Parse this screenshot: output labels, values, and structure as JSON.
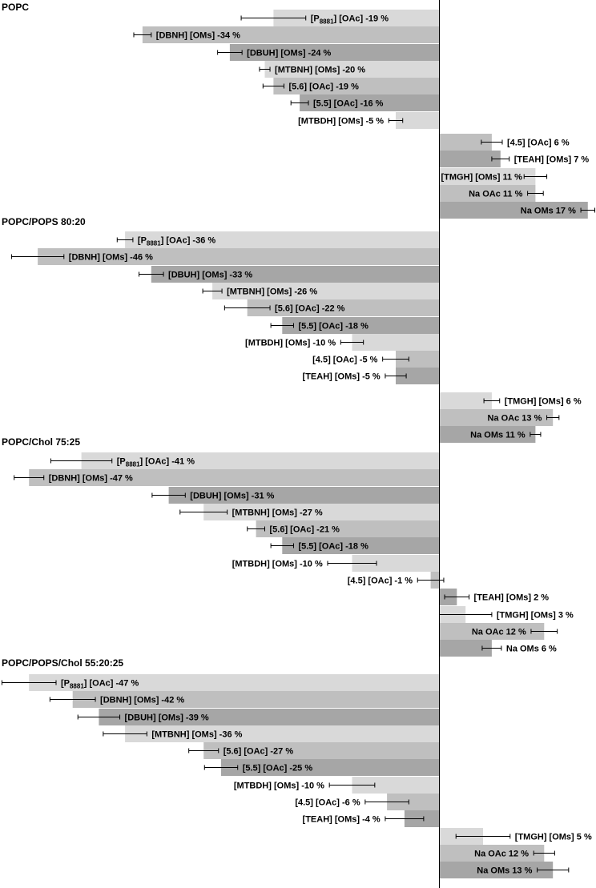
{
  "chart_data": {
    "type": "bar",
    "orientation": "horizontal",
    "unit": "%",
    "xlim": [
      -52,
      18
    ],
    "colors": {
      "light": "#d9d9d9",
      "mid": "#bfbfbf",
      "dark": "#a6a6a6"
    },
    "panels": [
      {
        "title": "POPC",
        "bars": [
          {
            "label": "[P8881] [OAc]",
            "value": -19,
            "text": "-19 %",
            "err": 3.7,
            "shade": "light"
          },
          {
            "label": "[DBNH] [OMs]",
            "value": -34,
            "text": "-34 %",
            "err": 1.0,
            "shade": "mid"
          },
          {
            "label": "[DBUH] [OMs]",
            "value": -24,
            "text": "-24 %",
            "err": 1.4,
            "shade": "dark"
          },
          {
            "label": "[MTBNH] [OMs]",
            "value": -20,
            "text": "-20 %",
            "err": 0.6,
            "shade": "light"
          },
          {
            "label": "[5.6] [OAc]",
            "value": -19,
            "text": "-19 %",
            "err": 1.2,
            "shade": "mid"
          },
          {
            "label": "[5.5] [OAc]",
            "value": -16,
            "text": "-16 %",
            "err": 1.0,
            "shade": "dark"
          },
          {
            "label": "[MTBDH] [OMs]",
            "value": -5,
            "text": "-5 %",
            "err": 0.8,
            "shade": "light"
          },
          {
            "label": "[4.5] [OAc]",
            "value": 6,
            "text": "6 %",
            "err": 1.2,
            "shade": "mid"
          },
          {
            "label": "[TEAH] [OMs]",
            "value": 7,
            "text": "7 %",
            "err": 1.0,
            "shade": "dark"
          },
          {
            "label": "[TMGH] [OMs]",
            "value": 11,
            "text": "11 %",
            "err": 1.3,
            "shade": "light"
          },
          {
            "label": "Na OAc",
            "value": 11,
            "text": "11 %",
            "err": 0.9,
            "shade": "mid"
          },
          {
            "label": "Na OMs",
            "value": 17,
            "text": "17 %",
            "err": 0.8,
            "shade": "dark"
          }
        ]
      },
      {
        "title": "POPC/POPS 80:20",
        "bars": [
          {
            "label": "[P8881] [OAc]",
            "value": -36,
            "text": "-36 %",
            "err": 0.9,
            "shade": "light"
          },
          {
            "label": "[DBNH] [OMs]",
            "value": -46,
            "text": "-46 %",
            "err": 3.0,
            "shade": "mid"
          },
          {
            "label": "[DBUH] [OMs]",
            "value": -33,
            "text": "-33 %",
            "err": 1.4,
            "shade": "dark"
          },
          {
            "label": "[MTBNH] [OMs]",
            "value": -26,
            "text": "-26 %",
            "err": 1.1,
            "shade": "light"
          },
          {
            "label": "[5.6] [OAc]",
            "value": -22,
            "text": "-22 %",
            "err": 2.6,
            "shade": "mid"
          },
          {
            "label": "[5.5] [OAc]",
            "value": -18,
            "text": "-18 %",
            "err": 1.3,
            "shade": "dark"
          },
          {
            "label": "[MTBDH] [OMs]",
            "value": -10,
            "text": "-10 %",
            "err": 1.3,
            "shade": "light"
          },
          {
            "label": "[4.5] [OAc]",
            "value": -5,
            "text": "-5 %",
            "err": 1.5,
            "shade": "mid"
          },
          {
            "label": "[TEAH] [OMs]",
            "value": -5,
            "text": "-5 %",
            "err": 1.2,
            "shade": "dark"
          },
          {
            "label": "[TMGH] [OMs]",
            "value": 6,
            "text": "6 %",
            "err": 0.9,
            "shade": "light"
          },
          {
            "label": "Na OAc",
            "value": 13,
            "text": "13 %",
            "err": 0.7,
            "shade": "mid"
          },
          {
            "label": "Na OMs",
            "value": 11,
            "text": "11 %",
            "err": 0.6,
            "shade": "dark"
          }
        ]
      },
      {
        "title": "POPC/Chol 75:25",
        "bars": [
          {
            "label": "[P8881] [OAc]",
            "value": -41,
            "text": "-41 %",
            "err": 3.5,
            "shade": "light"
          },
          {
            "label": "[DBNH] [OMs]",
            "value": -47,
            "text": "-47 %",
            "err": 1.7,
            "shade": "mid"
          },
          {
            "label": "[DBUH] [OMs]",
            "value": -31,
            "text": "-31 %",
            "err": 1.9,
            "shade": "dark"
          },
          {
            "label": "[MTBNH] [OMs]",
            "value": -27,
            "text": "-27 %",
            "err": 2.7,
            "shade": "light"
          },
          {
            "label": "[5.6] [OAc]",
            "value": -21,
            "text": "-21 %",
            "err": 1.0,
            "shade": "mid"
          },
          {
            "label": "[5.5] [OAc]",
            "value": -18,
            "text": "-18 %",
            "err": 1.3,
            "shade": "dark"
          },
          {
            "label": "[MTBDH] [OMs]",
            "value": -10,
            "text": "-10 %",
            "err": 2.8,
            "shade": "light"
          },
          {
            "label": "[4.5] [OAc]",
            "value": -1,
            "text": "-1 %",
            "err": 1.5,
            "shade": "mid"
          },
          {
            "label": "[TEAH] [OMs]",
            "value": 2,
            "text": "2 %",
            "err": 1.4,
            "shade": "dark"
          },
          {
            "label": "[TMGH] [OMs]",
            "value": 3,
            "text": "3 %",
            "err": 3.0,
            "shade": "light"
          },
          {
            "label": "Na OAc",
            "value": 12,
            "text": "12 %",
            "err": 1.5,
            "shade": "mid"
          },
          {
            "label": "Na OMs",
            "value": 6,
            "text": "6 %",
            "err": 1.1,
            "shade": "dark"
          }
        ]
      },
      {
        "title": "POPC/POPS/Chol 55:20:25",
        "bars": [
          {
            "label": "[P8881] [OAc]",
            "value": -47,
            "text": "-47 %",
            "err": 3.1,
            "shade": "light"
          },
          {
            "label": "[DBNH] [OMs]",
            "value": -42,
            "text": "-42 %",
            "err": 2.6,
            "shade": "mid"
          },
          {
            "label": "[DBUH] [OMs]",
            "value": -39,
            "text": "-39 %",
            "err": 2.4,
            "shade": "dark"
          },
          {
            "label": "[MTBNH] [OMs]",
            "value": -36,
            "text": "-36 %",
            "err": 2.5,
            "shade": "light"
          },
          {
            "label": "[5.6] [OAc]",
            "value": -27,
            "text": "-27 %",
            "err": 1.7,
            "shade": "mid"
          },
          {
            "label": "[5.5] [OAc]",
            "value": -25,
            "text": "-25 %",
            "err": 1.9,
            "shade": "dark"
          },
          {
            "label": "[MTBDH] [OMs]",
            "value": -10,
            "text": "-10 %",
            "err": 2.6,
            "shade": "light"
          },
          {
            "label": "[4.5] [OAc]",
            "value": -6,
            "text": "-6 %",
            "err": 2.5,
            "shade": "mid"
          },
          {
            "label": "[TEAH] [OMs]",
            "value": -4,
            "text": "-4 %",
            "err": 2.2,
            "shade": "dark"
          },
          {
            "label": "[TMGH] [OMs]",
            "value": 5,
            "text": "5 %",
            "err": 3.1,
            "shade": "light"
          },
          {
            "label": "Na OAc",
            "value": 12,
            "text": "12 %",
            "err": 1.2,
            "shade": "mid"
          },
          {
            "label": "Na OMs",
            "value": 13,
            "text": "13 %",
            "err": 1.8,
            "shade": "dark"
          }
        ]
      }
    ]
  }
}
